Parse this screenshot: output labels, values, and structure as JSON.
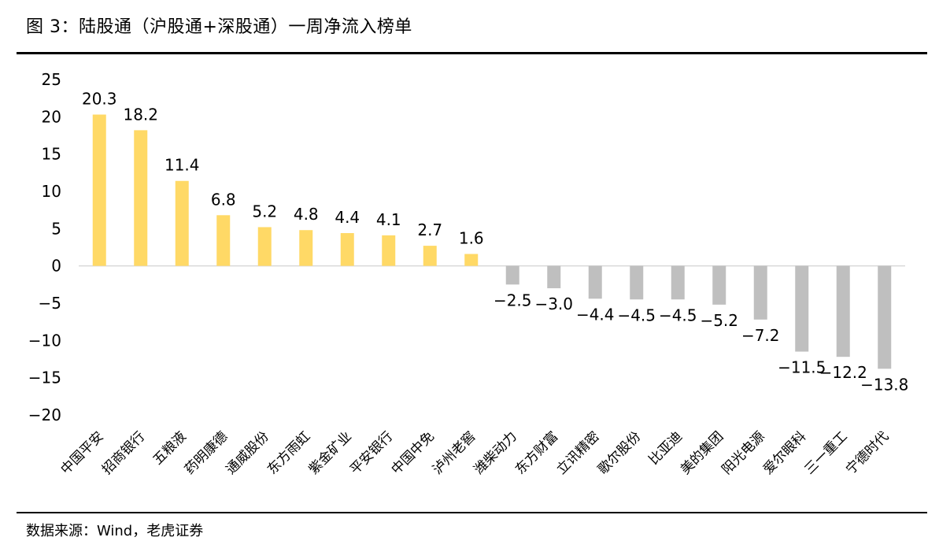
{
  "title": "图 3：陆股通（沪股通+深股通）一周净流入榜单",
  "source": "数据来源：Wind，老虎证券",
  "chart_data": {
    "type": "bar",
    "categories": [
      "中国平安",
      "招商银行",
      "五粮液",
      "药明康德",
      "通威股份",
      "东方雨虹",
      "紫金矿业",
      "平安银行",
      "中国中免",
      "泸州老窖",
      "潍柴动力",
      "东方财富",
      "立讯精密",
      "歌尔股份",
      "比亚迪",
      "美的集团",
      "阳光电源",
      "爱尔眼科",
      "三一重工",
      "宁德时代"
    ],
    "values": [
      20.3,
      18.2,
      11.4,
      6.8,
      5.2,
      4.8,
      4.4,
      4.1,
      2.7,
      1.6,
      -2.5,
      -3.0,
      -4.4,
      -4.5,
      -4.5,
      -5.2,
      -7.2,
      -11.5,
      -12.2,
      -13.8
    ],
    "value_labels": [
      "20.3",
      "18.2",
      "11.4",
      "6.8",
      "5.2",
      "4.8",
      "4.4",
      "4.1",
      "2.7",
      "1.6",
      "−2.5",
      "−3.0",
      "−4.4",
      "−4.5",
      "−4.5",
      "−5.2",
      "−7.2",
      "−11.5",
      "−12.2",
      "−13.8"
    ],
    "yticks": [
      "25",
      "20",
      "15",
      "10",
      "5",
      "0",
      "−5",
      "−10",
      "−15",
      "−20"
    ],
    "ylim": [
      -20,
      25
    ],
    "colors": {
      "positive": "#FFD966",
      "negative": "#BFBFBF"
    }
  }
}
